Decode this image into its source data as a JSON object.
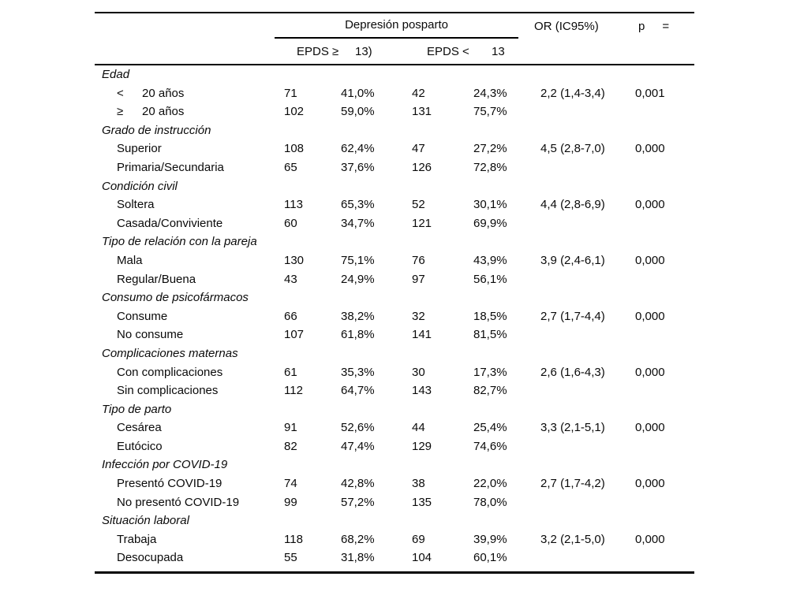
{
  "header": {
    "depression_group": "Depresión posparto",
    "or": "OR (IC95%)",
    "p": "p",
    "equals": "=",
    "epds_high": "EPDS ≥",
    "epds_high_cutoff": "13)",
    "epds_low": "EPDS <",
    "epds_low_cutoff": "13"
  },
  "sections": [
    {
      "title": "Edad",
      "rows": [
        {
          "symbol": "<",
          "label": "20 años",
          "n1": "71",
          "p1": "41,0%",
          "n2": "42",
          "p2": "24,3%",
          "or": "2,2 (1,4-3,4)",
          "p": "0,001"
        },
        {
          "symbol": "≥",
          "label": "20 años",
          "n1": "102",
          "p1": "59,0%",
          "n2": "131",
          "p2": "75,7%",
          "or": "",
          "p": ""
        }
      ]
    },
    {
      "title": "Grado de instrucción",
      "rows": [
        {
          "symbol": "",
          "label": "Superior",
          "n1": "108",
          "p1": "62,4%",
          "n2": "47",
          "p2": "27,2%",
          "or": "4,5 (2,8-7,0)",
          "p": "0,000"
        },
        {
          "symbol": "",
          "label": "Primaria/Secundaria",
          "n1": "65",
          "p1": "37,6%",
          "n2": "126",
          "p2": "72,8%",
          "or": "",
          "p": ""
        }
      ]
    },
    {
      "title": "Condición civil",
      "rows": [
        {
          "symbol": "",
          "label": "Soltera",
          "n1": "113",
          "p1": "65,3%",
          "n2": "52",
          "p2": "30,1%",
          "or": "4,4 (2,8-6,9)",
          "p": "0,000"
        },
        {
          "symbol": "",
          "label": "Casada/Conviviente",
          "n1": "60",
          "p1": "34,7%",
          "n2": "121",
          "p2": "69,9%",
          "or": "",
          "p": ""
        }
      ]
    },
    {
      "title": "Tipo de relación con la pareja",
      "rows": [
        {
          "symbol": "",
          "label": "Mala",
          "n1": "130",
          "p1": "75,1%",
          "n2": "76",
          "p2": "43,9%",
          "or": "3,9 (2,4-6,1)",
          "p": "0,000"
        },
        {
          "symbol": "",
          "label": "Regular/Buena",
          "n1": "43",
          "p1": "24,9%",
          "n2": "97",
          "p2": "56,1%",
          "or": "",
          "p": ""
        }
      ]
    },
    {
      "title": "Consumo de psicofármacos",
      "rows": [
        {
          "symbol": "",
          "label": "Consume",
          "n1": "66",
          "p1": "38,2%",
          "n2": "32",
          "p2": "18,5%",
          "or": "2,7 (1,7-4,4)",
          "p": "0,000"
        },
        {
          "symbol": "",
          "label": "No consume",
          "n1": "107",
          "p1": "61,8%",
          "n2": "141",
          "p2": "81,5%",
          "or": "",
          "p": ""
        }
      ]
    },
    {
      "title": "Complicaciones maternas",
      "rows": [
        {
          "symbol": "",
          "label": "Con complicaciones",
          "n1": "61",
          "p1": "35,3%",
          "n2": "30",
          "p2": "17,3%",
          "or": "2,6 (1,6-4,3)",
          "p": "0,000"
        },
        {
          "symbol": "",
          "label": "Sin complicaciones",
          "n1": "112",
          "p1": "64,7%",
          "n2": "143",
          "p2": "82,7%",
          "or": "",
          "p": ""
        }
      ]
    },
    {
      "title": "Tipo de parto",
      "rows": [
        {
          "symbol": "",
          "label": "Cesárea",
          "n1": "91",
          "p1": "52,6%",
          "n2": "44",
          "p2": "25,4%",
          "or": "3,3 (2,1-5,1)",
          "p": "0,000"
        },
        {
          "symbol": "",
          "label": "Eutócico",
          "n1": "82",
          "p1": "47,4%",
          "n2": "129",
          "p2": "74,6%",
          "or": "",
          "p": ""
        }
      ]
    },
    {
      "title": "Infección por COVID-19",
      "rows": [
        {
          "symbol": "",
          "label": "Presentó COVID-19",
          "n1": "74",
          "p1": "42,8%",
          "n2": "38",
          "p2": "22,0%",
          "or": "2,7 (1,7-4,2)",
          "p": "0,000"
        },
        {
          "symbol": "",
          "label": "No presentó COVID-19",
          "n1": "99",
          "p1": "57,2%",
          "n2": "135",
          "p2": "78,0%",
          "or": "",
          "p": ""
        }
      ]
    },
    {
      "title": "Situación laboral",
      "rows": [
        {
          "symbol": "",
          "label": "Trabaja",
          "n1": "118",
          "p1": "68,2%",
          "n2": "69",
          "p2": "39,9%",
          "or": "3,2 (2,1-5,0)",
          "p": "0,000"
        },
        {
          "symbol": "",
          "label": "Desocupada",
          "n1": "55",
          "p1": "31,8%",
          "n2": "104",
          "p2": "60,1%",
          "or": "",
          "p": ""
        }
      ]
    }
  ]
}
